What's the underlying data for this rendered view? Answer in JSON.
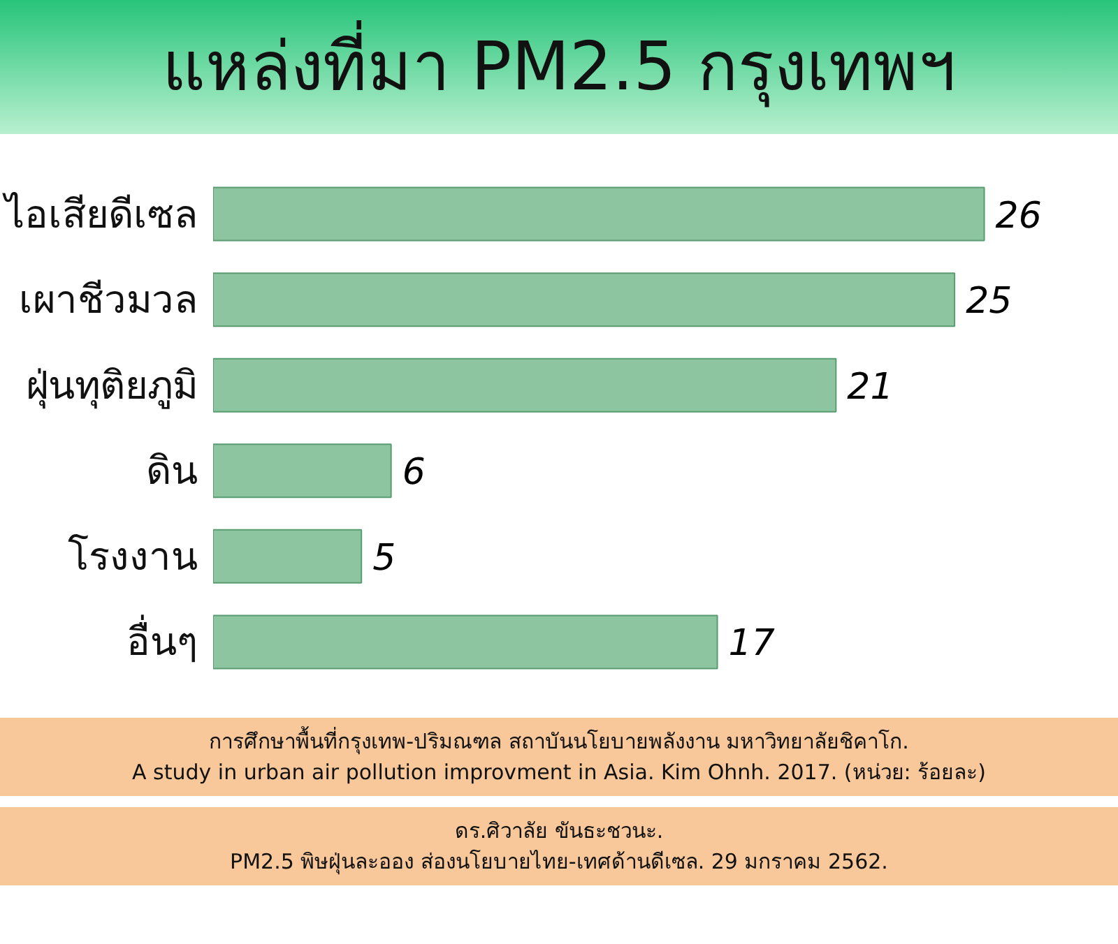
{
  "chart_data": {
    "type": "bar",
    "orientation": "horizontal",
    "title": "แหล่งที่มา PM2.5 กรุงเทพฯ",
    "categories": [
      "ไอเสียดีเซล",
      "เผาชีวมวล",
      "ฝุ่นทุติยภูมิ",
      "ดิน",
      "โรงงาน",
      "อื่นๆ"
    ],
    "values": [
      26,
      25,
      21,
      6,
      5,
      17
    ],
    "color": "#8cc5a0",
    "data_labels": true,
    "grid": false,
    "annotations": [
      "การศึกษาพื้นที่กรุงเทพ-ปริมณฑล สถาบันนโยบายพลังงาน มหาวิทยาลัยชิคาโก.",
      "A study in urban air pollution improvment in Asia. Kim Ohnh. 2017. (หน่วย: ร้อยละ)",
      "ดร.ศิวาลัย ขันธะชวนะ.",
      "PM2.5 พิษฝุ่นละออง ส่องนโยบายไทย-เทศด้านดีเซล. 29 มกราคม 2562."
    ]
  }
}
